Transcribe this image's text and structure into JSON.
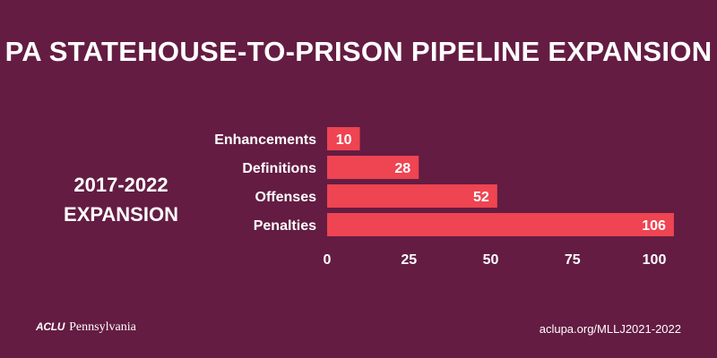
{
  "header": {
    "title": "PA STATEHOUSE-TO-PRISON PIPELINE EXPANSION"
  },
  "side_label": {
    "line1": "2017-2022",
    "line2": "EXPANSION"
  },
  "footer": {
    "org_mark": "ACLU",
    "org_name": "Pennsylvania",
    "url": "aclupa.org/MLLJ2021-2022"
  },
  "colors": {
    "background": "#641c42",
    "bar": "#ef4451",
    "text": "#ffffff"
  },
  "chart_data": {
    "type": "bar",
    "orientation": "horizontal",
    "categories": [
      "Enhancements",
      "Definitions",
      "Offenses",
      "Penalties"
    ],
    "values": [
      10,
      28,
      52,
      106
    ],
    "xlim": [
      0,
      106
    ],
    "xticks": [
      0,
      25,
      50,
      75,
      100
    ],
    "grid": false,
    "data_labels": true
  }
}
